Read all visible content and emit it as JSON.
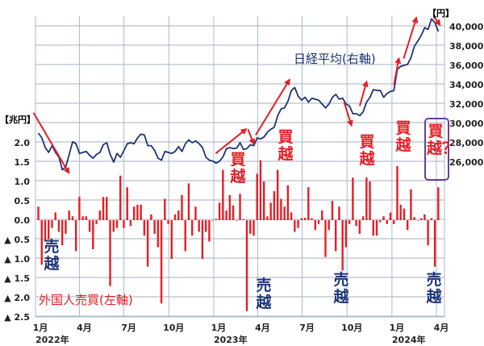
{
  "chart_data": {
    "type": "bar+line",
    "left_axis": {
      "unit": "【兆円】",
      "range": [
        -2.5,
        2.5
      ],
      "ticks": [
        "2.0",
        "1.5",
        "1.0",
        "0.5",
        "0.0",
        "▲ 0.5",
        "▲ 1.0",
        "▲ 1.5",
        "▲ 2.0",
        "▲ 2.5"
      ],
      "tick_values": [
        2.0,
        1.5,
        1.0,
        0.5,
        0.0,
        -0.5,
        -1.0,
        -1.5,
        -2.0,
        -2.5
      ]
    },
    "right_axis": {
      "unit": "【円】",
      "range": [
        10000,
        41000
      ],
      "ticks": [
        "40,000",
        "38,000",
        "36,000",
        "34,000",
        "32,000",
        "30,000",
        "28,000",
        "26,000"
      ],
      "tick_values": [
        40000,
        38000,
        36000,
        34000,
        32000,
        30000,
        28000,
        26000
      ]
    },
    "x_ticks": [
      {
        "label": "1月",
        "date": "2022-01-01",
        "year": "2022年"
      },
      {
        "label": "4月",
        "date": "2022-04-01"
      },
      {
        "label": "7月",
        "date": "2022-07-01"
      },
      {
        "label": "10月",
        "date": "2022-10-01"
      },
      {
        "label": "1月",
        "date": "2023-01-01",
        "year": "2023年"
      },
      {
        "label": "4月",
        "date": "2023-04-01"
      },
      {
        "label": "7月",
        "date": "2023-07-01"
      },
      {
        "label": "10月",
        "date": "2023-10-01"
      },
      {
        "label": "1月",
        "date": "2024-01-01",
        "year": "2024年"
      },
      {
        "label": "4月",
        "date": "2024-04-01"
      }
    ],
    "x_range": [
      "2022-01-01",
      "2024-04-12"
    ],
    "grid": true,
    "x": [
      "2022-01-07",
      "2022-01-14",
      "2022-01-21",
      "2022-01-28",
      "2022-02-04",
      "2022-02-11",
      "2022-02-18",
      "2022-02-25",
      "2022-03-04",
      "2022-03-11",
      "2022-03-18",
      "2022-03-25",
      "2022-04-01",
      "2022-04-08",
      "2022-04-15",
      "2022-04-22",
      "2022-04-29",
      "2022-05-06",
      "2022-05-13",
      "2022-05-20",
      "2022-05-27",
      "2022-06-03",
      "2022-06-10",
      "2022-06-17",
      "2022-06-24",
      "2022-07-01",
      "2022-07-08",
      "2022-07-15",
      "2022-07-22",
      "2022-07-29",
      "2022-08-05",
      "2022-08-12",
      "2022-08-19",
      "2022-08-26",
      "2022-09-02",
      "2022-09-09",
      "2022-09-16",
      "2022-09-23",
      "2022-09-30",
      "2022-10-07",
      "2022-10-14",
      "2022-10-21",
      "2022-10-28",
      "2022-11-04",
      "2022-11-11",
      "2022-11-18",
      "2022-11-25",
      "2022-12-02",
      "2022-12-09",
      "2022-12-16",
      "2022-12-23",
      "2022-12-30",
      "2023-01-06",
      "2023-01-13",
      "2023-01-20",
      "2023-01-27",
      "2023-02-03",
      "2023-02-10",
      "2023-02-17",
      "2023-02-24",
      "2023-03-03",
      "2023-03-10",
      "2023-03-17",
      "2023-03-24",
      "2023-03-31",
      "2023-04-07",
      "2023-04-14",
      "2023-04-21",
      "2023-04-28",
      "2023-05-05",
      "2023-05-12",
      "2023-05-19",
      "2023-05-26",
      "2023-06-02",
      "2023-06-09",
      "2023-06-16",
      "2023-06-23",
      "2023-06-30",
      "2023-07-07",
      "2023-07-14",
      "2023-07-21",
      "2023-07-28",
      "2023-08-04",
      "2023-08-11",
      "2023-08-18",
      "2023-08-25",
      "2023-09-01",
      "2023-09-08",
      "2023-09-15",
      "2023-09-22",
      "2023-09-29",
      "2023-10-06",
      "2023-10-13",
      "2023-10-20",
      "2023-10-27",
      "2023-11-03",
      "2023-11-10",
      "2023-11-17",
      "2023-11-24",
      "2023-12-01",
      "2023-12-08",
      "2023-12-15",
      "2023-12-22",
      "2023-12-29",
      "2024-01-05",
      "2024-01-12",
      "2024-01-19",
      "2024-01-26",
      "2024-02-02",
      "2024-02-09",
      "2024-02-16",
      "2024-02-23",
      "2024-03-01",
      "2024-03-08",
      "2024-03-15",
      "2024-03-22",
      "2024-03-29",
      "2024-04-05"
    ],
    "series": [
      {
        "name": "外国人売買(左軸)",
        "type": "bar",
        "axis": "left",
        "color": "#e51e25",
        "values": [
          0.35,
          -1.15,
          -0.55,
          -0.5,
          -0.2,
          0.2,
          -0.3,
          -0.65,
          -0.35,
          0.25,
          0.1,
          -0.8,
          0.6,
          0.1,
          0.1,
          -0.3,
          -0.75,
          -0.1,
          0.25,
          0.6,
          0.6,
          -1.7,
          -0.3,
          -0.2,
          1.15,
          -0.2,
          0.85,
          -0.15,
          0.35,
          0.4,
          0.4,
          -0.4,
          -1.2,
          0.15,
          -0.35,
          -0.7,
          -2.15,
          0.55,
          -0.1,
          -1.0,
          0.15,
          0.25,
          0.65,
          -0.8,
          0.95,
          -0.4,
          0.35,
          -0.3,
          -1.0,
          -0.3,
          -0.55,
          0.0,
          0.03,
          0.45,
          1.3,
          0.25,
          0.65,
          0.38,
          0.0,
          0.68,
          0.02,
          -2.35,
          -0.35,
          -0.4,
          1.2,
          1.55,
          1.0,
          0.1,
          0.45,
          0.75,
          1.3,
          0.55,
          0.35,
          0.9,
          0.2,
          -0.3,
          -0.2,
          0.05,
          0.06,
          0.85,
          0.05,
          -0.25,
          -0.1,
          0.25,
          -0.95,
          -0.25,
          0.5,
          -0.8,
          0.35,
          -1.3,
          -0.7,
          -0.1,
          1.1,
          -0.15,
          -0.35,
          0.1,
          1.1,
          1.0,
          -0.4,
          -0.4,
          -0.05,
          0.1,
          -0.1,
          0.2,
          -0.1,
          1.4,
          0.4,
          0.3,
          -0.25,
          0.8,
          0.08,
          0.0,
          0.05,
          0.15,
          -0.65,
          0.05,
          -1.2,
          0.85
        ]
      },
      {
        "name": "日経平均(右軸)",
        "type": "line",
        "axis": "right",
        "color": "#1d3476",
        "values": [
          29000,
          28500,
          27500,
          27000,
          27700,
          27000,
          26500,
          25200,
          25500,
          26800,
          28100,
          27900,
          26900,
          27000,
          27100,
          26700,
          26400,
          26800,
          27000,
          27800,
          28000,
          26800,
          26000,
          26900,
          26500,
          27200,
          27900,
          28000,
          27900,
          28500,
          28900,
          28800,
          27700,
          27700,
          27200,
          26400,
          26200,
          27100,
          27000,
          26900,
          27100,
          27600,
          27100,
          27900,
          28300,
          28000,
          28200,
          27900,
          27500,
          26500,
          26200,
          26100,
          25900,
          26100,
          26550,
          27380,
          27500,
          27400,
          27450,
          28000,
          27300,
          27400,
          27800,
          27700,
          28500,
          28400,
          28600,
          29100,
          29400,
          29600,
          30800,
          31500,
          31600,
          32300,
          33400,
          33700,
          32800,
          32400,
          32700,
          32200,
          32600,
          32500,
          32400,
          32000,
          31600,
          32000,
          32700,
          33000,
          32500,
          32600,
          32000,
          31800,
          31000,
          31000,
          30800,
          31200,
          32200,
          32700,
          33500,
          33400,
          33400,
          32700,
          33100,
          33300,
          33400,
          35600,
          35900,
          36000,
          36100,
          36800,
          38000,
          38500,
          39100,
          39900,
          39700,
          40800,
          40400,
          39500
        ]
      }
    ],
    "trend_arrows": [
      {
        "from": [
          "2021-12-28",
          31100
        ],
        "to": [
          "2022-03-10",
          24900
        ]
      },
      {
        "from": [
          "2023-01-05",
          26900
        ],
        "to": [
          "2023-03-08",
          29400
        ]
      },
      {
        "from": [
          "2023-03-12",
          29400
        ],
        "to": [
          "2023-03-24",
          27900
        ]
      },
      {
        "from": [
          "2023-03-28",
          28800
        ],
        "to": [
          "2023-06-05",
          34500
        ]
      },
      {
        "from": [
          "2023-09-25",
          32200
        ],
        "to": [
          "2023-10-10",
          29800
        ]
      },
      {
        "from": [
          "2023-10-27",
          31800
        ],
        "to": [
          "2023-11-10",
          34300
        ]
      },
      {
        "from": [
          "2024-01-05",
          34000
        ],
        "to": [
          "2024-01-15",
          36700
        ]
      },
      {
        "from": [
          "2024-01-25",
          36700
        ],
        "to": [
          "2024-02-20",
          40900
        ]
      },
      {
        "from": [
          "2024-03-27",
          41000
        ],
        "to": [
          "2024-04-08",
          40200
        ]
      }
    ],
    "arrow_color": "#e51e25",
    "annotations": {
      "nikkei_label": "日経平均(右軸)",
      "foreign_label": "外国人売買(左軸)",
      "sell": "売越",
      "buy": "買越",
      "buy_question": "買越？"
    },
    "box_color": "#6b3d9a"
  }
}
